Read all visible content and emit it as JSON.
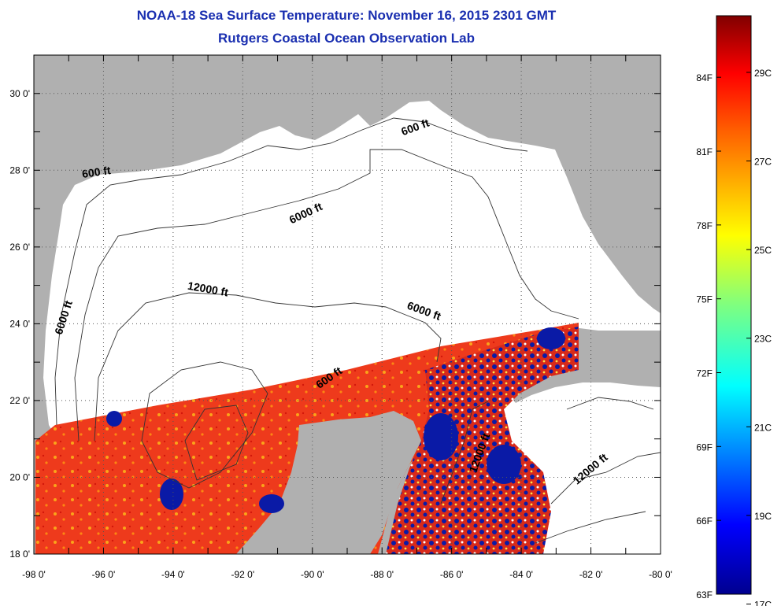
{
  "header": {
    "title": "NOAA-18 Sea Surface Temperature:  November 16, 2015 2301 GMT",
    "subtitle": "Rutgers Coastal Ocean Observation Lab"
  },
  "map": {
    "lon_range": [
      -98,
      -80
    ],
    "lat_range": [
      18,
      31
    ],
    "x_ticks": [
      "-98 0'",
      "-96 0'",
      "-94 0'",
      "-92 0'",
      "-90 0'",
      "-88 0'",
      "-86 0'",
      "-84 0'",
      "-82 0'",
      "-80 0'"
    ],
    "y_ticks": [
      "18 0'",
      "20 0'",
      "22 0'",
      "24 0'",
      "26 0'",
      "28 0'",
      "30 0'"
    ],
    "contour_labels": [
      "600 ft",
      "600 ft",
      "6000 ft",
      "6000 ft",
      "12000 ft",
      "6000 ft",
      "600 ft",
      "12000 ft",
      "12000 ft"
    ],
    "colors": {
      "land": "#b0b0b0",
      "ocean": "#ffffff",
      "sst_warm": "#ee3a1c",
      "sst_cold": "#0a1aa6"
    }
  },
  "colorbar": {
    "fahrenheit": [
      "84F",
      "81F",
      "78F",
      "75F",
      "72F",
      "69F",
      "66F",
      "63F"
    ],
    "celsius": [
      "29C",
      "27C",
      "25C",
      "23C",
      "21C",
      "19C",
      "17C"
    ]
  }
}
